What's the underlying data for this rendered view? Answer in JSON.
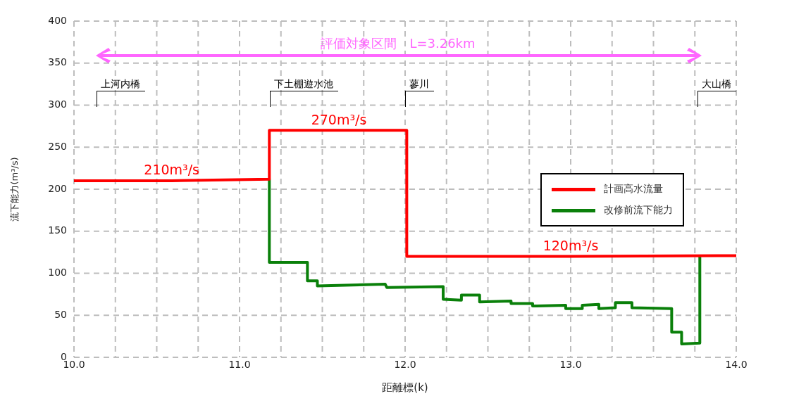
{
  "chart_data": {
    "type": "line",
    "xlabel": "距離標(k)",
    "ylabel": "流下能力(m³/s)",
    "xlim": [
      10,
      14
    ],
    "xticks": [
      {
        "value": 10,
        "label": "10.0"
      },
      {
        "value": 10.25,
        "label": null
      },
      {
        "value": 10.5,
        "label": null
      },
      {
        "value": 10.75,
        "label": null
      },
      {
        "value": 11,
        "label": "11.0"
      },
      {
        "value": 11.25,
        "label": null
      },
      {
        "value": 11.5,
        "label": null
      },
      {
        "value": 11.75,
        "label": null
      },
      {
        "value": 12,
        "label": "12.0"
      },
      {
        "value": 12.25,
        "label": null
      },
      {
        "value": 12.5,
        "label": null
      },
      {
        "value": 12.75,
        "label": null
      },
      {
        "value": 13,
        "label": "13.0"
      },
      {
        "value": 13.25,
        "label": null
      },
      {
        "value": 13.5,
        "label": null
      },
      {
        "value": 13.75,
        "label": null
      },
      {
        "value": 14,
        "label": "14.0"
      }
    ],
    "ylim": [
      0,
      400
    ],
    "yticks": [
      0,
      50,
      100,
      150,
      200,
      250,
      300,
      350,
      400
    ],
    "grid": true,
    "legend": "right",
    "marker": "none",
    "line_style": "solid",
    "series": [
      {
        "name": "計画高水流量",
        "color": "#ff0000",
        "x": [
          10,
          10.59,
          11.18,
          11.18,
          11.6,
          12.01,
          12.01,
          13.0,
          14
        ],
        "values": [
          210,
          210,
          212,
          270,
          270,
          270,
          120,
          120,
          121
        ],
        "value_labels": [
          null,
          "210m³/s",
          null,
          null,
          "270m³/s",
          null,
          null,
          "120m³/s",
          null
        ]
      },
      {
        "name": "改修前流下能力",
        "color": "#0a800a",
        "x": [
          11.18,
          11.18,
          11.41,
          11.41,
          11.47,
          11.47,
          11.88,
          11.89,
          12.23,
          12.23,
          12.34,
          12.34,
          12.45,
          12.45,
          12.64,
          12.64,
          12.77,
          12.77,
          12.97,
          12.97,
          13.07,
          13.07,
          13.17,
          13.17,
          13.27,
          13.27,
          13.37,
          13.37,
          13.61,
          13.61,
          13.67,
          13.67,
          13.78,
          13.78
        ],
        "values": [
          212,
          113,
          113,
          91,
          91,
          85,
          87,
          83,
          84,
          69,
          68,
          74,
          74,
          66,
          67,
          64,
          64,
          61,
          62,
          58,
          58,
          62,
          63,
          58,
          59,
          65,
          65,
          59,
          58,
          30,
          30,
          16,
          17,
          120
        ]
      }
    ],
    "annotations": [
      "評価対象区間　L=3.26km",
      "上河内橋",
      "下土棚遊水池",
      "蓼川",
      "大山橋"
    ]
  }
}
